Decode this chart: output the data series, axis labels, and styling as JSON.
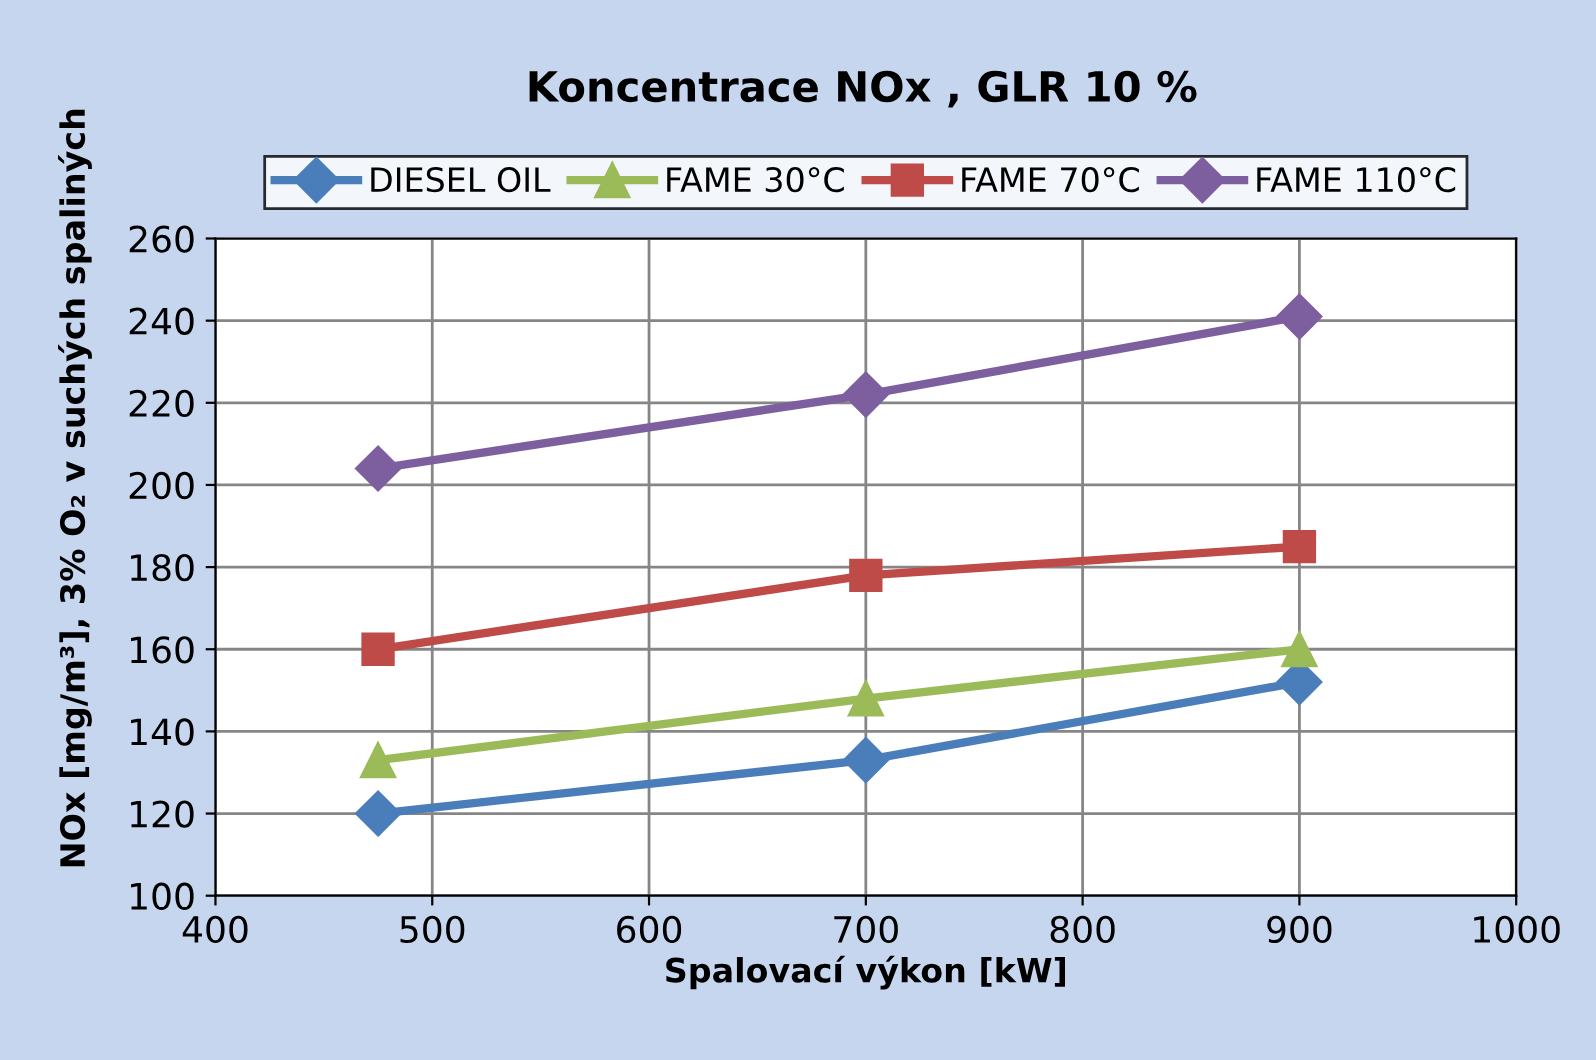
{
  "chart_data": {
    "type": "line",
    "title": "Koncentrace NOx , GLR 10 %",
    "xlabel": "Spalovací výkon [kW]",
    "ylabel": "NOx [mg/m³], 3% O₂ v suchých spaliných",
    "x": [
      475,
      700,
      900
    ],
    "series": [
      {
        "name": "DIESEL OIL",
        "color": "#4a7ebb",
        "marker": "diamond",
        "values": [
          120,
          133,
          152
        ]
      },
      {
        "name": "FAME 30°C",
        "color": "#9bbb59",
        "marker": "triangle",
        "values": [
          133,
          148,
          160
        ]
      },
      {
        "name": "FAME 70°C",
        "color": "#be4b48",
        "marker": "square",
        "values": [
          160,
          178,
          185
        ]
      },
      {
        "name": "FAME 110°C",
        "color": "#7d5fa0",
        "marker": "diamond",
        "values": [
          204,
          222,
          241
        ]
      }
    ],
    "xlim": [
      400,
      1000
    ],
    "xticks": [
      400,
      500,
      600,
      700,
      800,
      900,
      1000
    ],
    "ylim": [
      100,
      260
    ],
    "yticks": [
      100,
      120,
      140,
      160,
      180,
      200,
      220,
      240,
      260
    ],
    "grid": true,
    "legend": "top",
    "line_style": "solid"
  }
}
